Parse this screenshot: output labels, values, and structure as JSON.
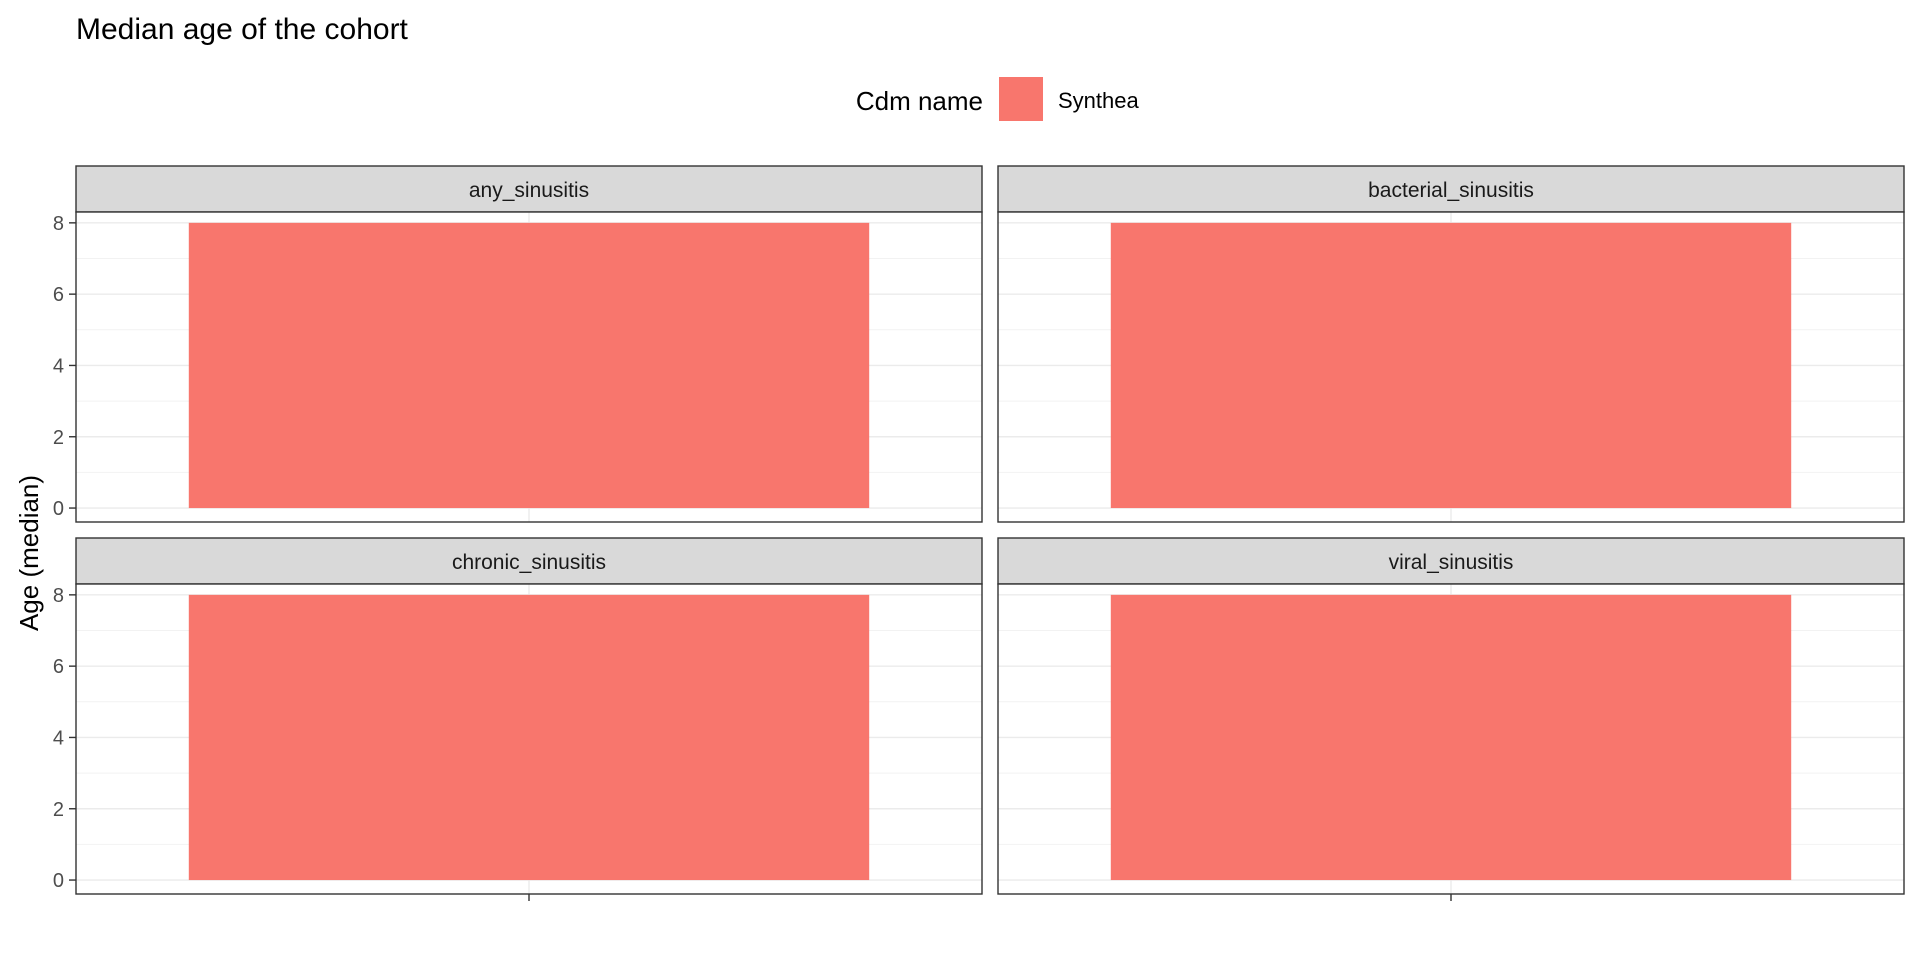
{
  "chart_data": {
    "type": "bar",
    "title": "Median age of the cohort",
    "xlabel": "",
    "ylabel": "Age (median)",
    "ylim": [
      0,
      8.4
    ],
    "y_ticks": [
      0,
      2,
      4,
      6,
      8
    ],
    "grid": true,
    "legend": {
      "title": "Cdm name",
      "position": "top",
      "entries": [
        {
          "name": "Synthea",
          "color": "#F8766D"
        }
      ]
    },
    "facet_layout": {
      "rows": 2,
      "cols": 2
    },
    "facets": [
      {
        "label": "any_sinusitis",
        "value": 8
      },
      {
        "label": "bacterial_sinusitis",
        "value": 8
      },
      {
        "label": "chronic_sinusitis",
        "value": 8
      },
      {
        "label": "viral_sinusitis",
        "value": 8
      }
    ]
  },
  "colors": {
    "bar": "#F8766D",
    "strip_background": "#D9D9D9",
    "panel_border": "#333333",
    "grid_major": "#EBEBEB",
    "grid_minor": "#F2F2F2",
    "axis_text": "#4D4D4D"
  }
}
